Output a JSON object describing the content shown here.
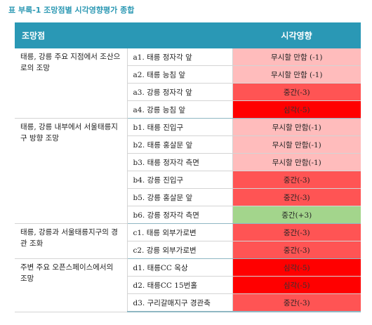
{
  "caption": "표 부록-1 조망점별 시각영향평가 종합",
  "headers": {
    "point": "조망점",
    "impact": "시각영향"
  },
  "colors": {
    "header_bg": "#2a98b5",
    "negligible": "#ffbcbc",
    "moderate": "#ff5454",
    "severe": "#ff0000",
    "positive": "#a3d58c"
  },
  "groups": [
    {
      "label": "태릉, 강릉 주요 지점에서 조산으로의 조망",
      "rows": [
        {
          "point": "a1. 태릉 정자각 앞",
          "impact": "무시할 만함 (-1)",
          "level": -1
        },
        {
          "point": "a2. 태릉 능침 앞",
          "impact": "무시할 만함 (-1)",
          "level": -1
        },
        {
          "point": "a3. 강릉 정자각 앞",
          "impact": "중간(-3)",
          "level": -3
        },
        {
          "point": "a4. 강릉 능침 앞",
          "impact": "심각(-5)",
          "level": -5
        }
      ]
    },
    {
      "label": "태릉, 강릉 내부에서 서울태릉지구 방향 조망",
      "rows": [
        {
          "point": "b1. 태릉 진입구",
          "impact": "무시할 만함(-1)",
          "level": -1
        },
        {
          "point": "b2. 태릉 홍살문 앞",
          "impact": "무시할 만함(-1)",
          "level": -1
        },
        {
          "point": "b3. 태릉 정자각 측면",
          "impact": "무시할 만함(-1)",
          "level": -1
        },
        {
          "point": "b4. 강릉 진입구",
          "impact": "중간(-3)",
          "level": -3
        },
        {
          "point": "b5. 강릉 홍살문 앞",
          "impact": "중간(-3)",
          "level": -3
        },
        {
          "point": "b6. 강릉 정자각 측면",
          "impact": "중간(+3)",
          "level": 3
        }
      ]
    },
    {
      "label": "태릉, 강릉과 서울태릉지구의 경관 조화",
      "rows": [
        {
          "point": "c1. 태릉 외부가로변",
          "impact": "중간(-3)",
          "level": -3
        },
        {
          "point": "c2. 강릉 외부가로변",
          "impact": "중간(-3)",
          "level": -3
        }
      ]
    },
    {
      "label": "주변 주요 오픈스페이스에서의 조망",
      "rows": [
        {
          "point": "d1. 태릉CC 옥상",
          "impact": "심각(-5)",
          "level": -5
        },
        {
          "point": "d2. 태릉CC 15번홀",
          "impact": "심각(-5)",
          "level": -5
        },
        {
          "point": "d3. 구리갈매지구 경관축",
          "impact": "중간(-3)",
          "level": -3
        }
      ]
    }
  ]
}
